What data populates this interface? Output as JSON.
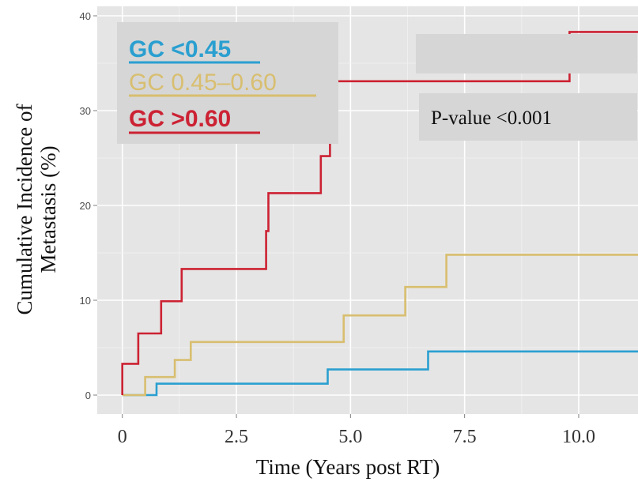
{
  "chart_data": {
    "type": "line",
    "step": true,
    "x_ticks": [
      0,
      2.5,
      5.0,
      7.5,
      10.0
    ],
    "x_tick_labels": [
      "0",
      "2.5",
      "5.0",
      "7.5",
      "10.0"
    ],
    "y_ticks": [
      0,
      10,
      20,
      30,
      40
    ],
    "y_tick_labels": [
      "0",
      "10",
      "20",
      "30",
      "40"
    ],
    "xlim": [
      -0.55,
      11.3
    ],
    "ylim": [
      -2.0,
      41.0
    ],
    "xlabel": "Time (Years post RT)",
    "ylabel_lines": [
      "Cumulative Incidence of",
      "Metastasis (%)"
    ],
    "grid": true,
    "legend_position": "top-left",
    "background": "#e5e5e5",
    "series": [
      {
        "name": "GC <0.45",
        "color": "#2a9fd0",
        "points": [
          [
            0,
            0
          ],
          [
            0.75,
            0
          ],
          [
            0.75,
            1.2
          ],
          [
            4.5,
            1.2
          ],
          [
            4.5,
            2.7
          ],
          [
            6.7,
            2.7
          ],
          [
            6.7,
            4.6
          ],
          [
            11.3,
            4.6
          ]
        ]
      },
      {
        "name": "GC 0.45–0.60",
        "color": "#d8be6f",
        "points": [
          [
            0,
            0
          ],
          [
            0.5,
            0
          ],
          [
            0.5,
            1.9
          ],
          [
            1.15,
            1.9
          ],
          [
            1.15,
            3.7
          ],
          [
            1.5,
            3.7
          ],
          [
            1.5,
            5.6
          ],
          [
            4.85,
            5.6
          ],
          [
            4.85,
            8.4
          ],
          [
            6.2,
            8.4
          ],
          [
            6.2,
            11.4
          ],
          [
            7.1,
            11.4
          ],
          [
            7.1,
            14.8
          ],
          [
            11.3,
            14.8
          ]
        ]
      },
      {
        "name": "GC >0.60",
        "color": "#cc2233",
        "points": [
          [
            0,
            0
          ],
          [
            0,
            3.3
          ],
          [
            0.35,
            3.3
          ],
          [
            0.35,
            6.5
          ],
          [
            0.85,
            6.5
          ],
          [
            0.85,
            9.9
          ],
          [
            1.3,
            9.9
          ],
          [
            1.3,
            13.3
          ],
          [
            3.15,
            13.3
          ],
          [
            3.15,
            17.3
          ],
          [
            3.2,
            17.3
          ],
          [
            3.2,
            21.3
          ],
          [
            4.35,
            21.3
          ],
          [
            4.35,
            25.2
          ],
          [
            4.55,
            25.2
          ],
          [
            4.55,
            29.1
          ],
          [
            4.65,
            29.1
          ],
          [
            4.65,
            33.1
          ],
          [
            9.8,
            33.1
          ],
          [
            9.8,
            38.3
          ],
          [
            11.3,
            38.3
          ]
        ]
      }
    ],
    "annotation": "P-value <0.001"
  }
}
